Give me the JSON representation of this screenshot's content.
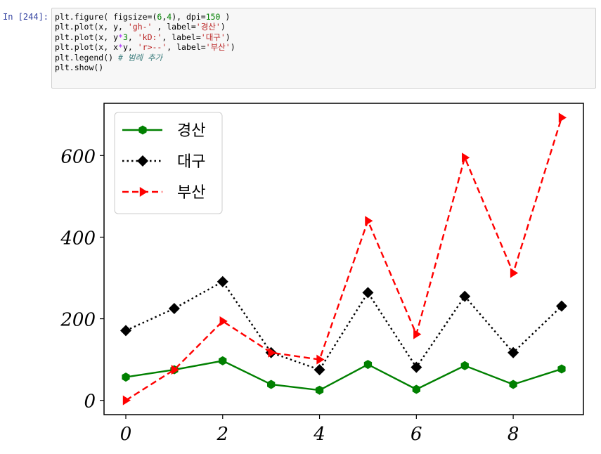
{
  "cell": {
    "prompt": "In [244]:",
    "code_lines": [
      [
        {
          "t": "plt.figure( figsize=(",
          "c": ""
        },
        {
          "t": "6",
          "c": "num"
        },
        {
          "t": ",",
          "c": ""
        },
        {
          "t": "4",
          "c": "num"
        },
        {
          "t": "), dpi=",
          "c": ""
        },
        {
          "t": "150",
          "c": "num"
        },
        {
          "t": " )",
          "c": ""
        }
      ],
      [
        {
          "t": "plt.plot(x, y, ",
          "c": ""
        },
        {
          "t": "'gh-'",
          "c": "str"
        },
        {
          "t": " , label=",
          "c": ""
        },
        {
          "t": "'경산'",
          "c": "str"
        },
        {
          "t": ")",
          "c": ""
        }
      ],
      [
        {
          "t": "plt.plot(x, y",
          "c": ""
        },
        {
          "t": "*",
          "c": "op"
        },
        {
          "t": "3",
          "c": "num"
        },
        {
          "t": ", ",
          "c": ""
        },
        {
          "t": "'kD:'",
          "c": "str"
        },
        {
          "t": ", label=",
          "c": ""
        },
        {
          "t": "'대구'",
          "c": "str"
        },
        {
          "t": ")",
          "c": ""
        }
      ],
      [
        {
          "t": "plt.plot(x, x",
          "c": ""
        },
        {
          "t": "*",
          "c": "op"
        },
        {
          "t": "y, ",
          "c": ""
        },
        {
          "t": "'r>--'",
          "c": "str"
        },
        {
          "t": ", label=",
          "c": ""
        },
        {
          "t": "'부산'",
          "c": "str"
        },
        {
          "t": ")",
          "c": ""
        }
      ],
      [
        {
          "t": "plt.legend() ",
          "c": ""
        },
        {
          "t": "# 범례 추가",
          "c": "cm"
        }
      ],
      [
        {
          "t": "plt.show()",
          "c": ""
        }
      ]
    ]
  },
  "chart_data": {
    "type": "line",
    "x": [
      0,
      1,
      2,
      3,
      4,
      5,
      6,
      7,
      8,
      9
    ],
    "series": [
      {
        "name": "경산",
        "style": "gh-",
        "color": "#008000",
        "marker": "hexagon",
        "line": "solid",
        "values": [
          57,
          75,
          97,
          39,
          25,
          88,
          27,
          85,
          39,
          77
        ]
      },
      {
        "name": "대구",
        "style": "kD:",
        "color": "#000000",
        "marker": "diamond",
        "line": "dotted",
        "values": [
          171,
          225,
          291,
          117,
          75,
          264,
          81,
          255,
          117,
          231
        ]
      },
      {
        "name": "부산",
        "style": "r>--",
        "color": "#ff0000",
        "marker": "triangle-right",
        "line": "dashed",
        "values": [
          0,
          75,
          194,
          117,
          100,
          440,
          162,
          595,
          312,
          693
        ]
      }
    ],
    "x_ticks": [
      0,
      2,
      4,
      6,
      8
    ],
    "y_ticks": [
      0,
      200,
      400,
      600
    ],
    "xlim": [
      -0.45,
      9.45
    ],
    "ylim": [
      -35,
      728
    ],
    "legend_placement": "upper-left",
    "grid": false
  }
}
